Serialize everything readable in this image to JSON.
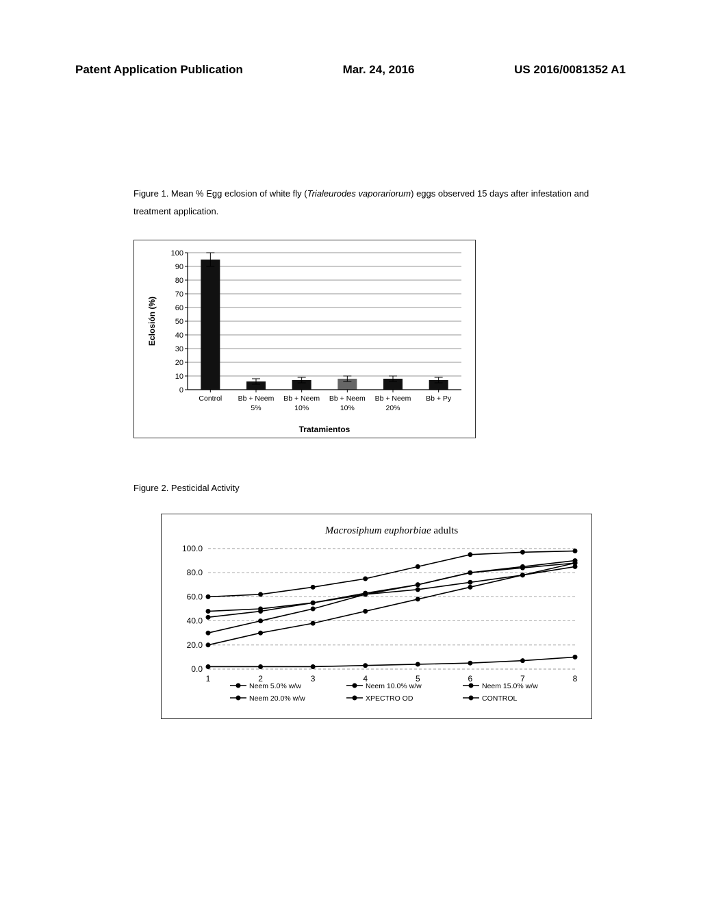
{
  "header": {
    "left": "Patent Application Publication",
    "center": "Mar. 24, 2016",
    "right": "US 2016/0081352 A1"
  },
  "figure1": {
    "caption_prefix": "Figure 1. Mean % Egg eclosion of white fly (",
    "caption_italic": "Trialeurodes vaporariorum",
    "caption_suffix": ") eggs observed 15 days after infestation and treatment application.",
    "chart": {
      "type": "bar",
      "background_color": "#ffffff",
      "grid_color": "#707070",
      "ylabel": "Eclosión (%)",
      "xlabel": "Tratamientos",
      "ylim": [
        0,
        100
      ],
      "ytick_step": 10,
      "categories": [
        "Control",
        "Bb + Neem 5%",
        "Bb + Neem 10%",
        "Bb + Neem 10%",
        "Bb + Neem 20%",
        "Bb + Py"
      ],
      "values": [
        95,
        6,
        7,
        8,
        8,
        7
      ],
      "error": [
        5,
        2,
        2,
        2,
        2,
        2
      ],
      "bar_colors": [
        "#111111",
        "#111111",
        "#111111",
        "#666666",
        "#111111",
        "#111111"
      ],
      "bar_width": 0.42,
      "label_fontsize": 11,
      "axis_color": "#000000"
    }
  },
  "figure2": {
    "caption": "Figure 2. Pesticidal Activity",
    "chart": {
      "type": "line",
      "title": "Macrosiphum euphorbiae adults",
      "title_italic": true,
      "title_fontsize": 15,
      "background_color": "#ffffff",
      "grid_color": "#9a9a9a",
      "grid_dash": "4 3",
      "xlim": [
        1,
        8
      ],
      "ylim": [
        0,
        100
      ],
      "ytick_step": 20,
      "xticks": [
        1,
        2,
        3,
        4,
        5,
        6,
        7,
        8
      ],
      "line_color": "#000000",
      "marker": "circle",
      "marker_size": 3.5,
      "line_width": 1.6,
      "series": [
        {
          "name": "Neem 5.0% w/w",
          "y": [
            48,
            50,
            55,
            62,
            66,
            72,
            78,
            85
          ]
        },
        {
          "name": "Neem 10.0% w/w",
          "y": [
            43,
            48,
            55,
            63,
            70,
            80,
            84,
            88
          ]
        },
        {
          "name": "Neem 15.0% w/w",
          "y": [
            30,
            40,
            50,
            62,
            70,
            80,
            85,
            90
          ]
        },
        {
          "name": "Neem 20.0% w/w",
          "y": [
            60,
            62,
            68,
            75,
            85,
            95,
            97,
            98
          ]
        },
        {
          "name": "XPECTRO OD",
          "y": [
            20,
            30,
            38,
            48,
            58,
            68,
            78,
            88
          ]
        },
        {
          "name": "CONTROL",
          "y": [
            2,
            2,
            2,
            3,
            4,
            5,
            7,
            10
          ]
        }
      ],
      "legend_rows": [
        [
          "Neem 5.0% w/w",
          "Neem 10.0% w/w",
          "Neem 15.0% w/w"
        ],
        [
          "Neem 20.0% w/w",
          "XPECTRO OD",
          "CONTROL"
        ]
      ]
    }
  }
}
